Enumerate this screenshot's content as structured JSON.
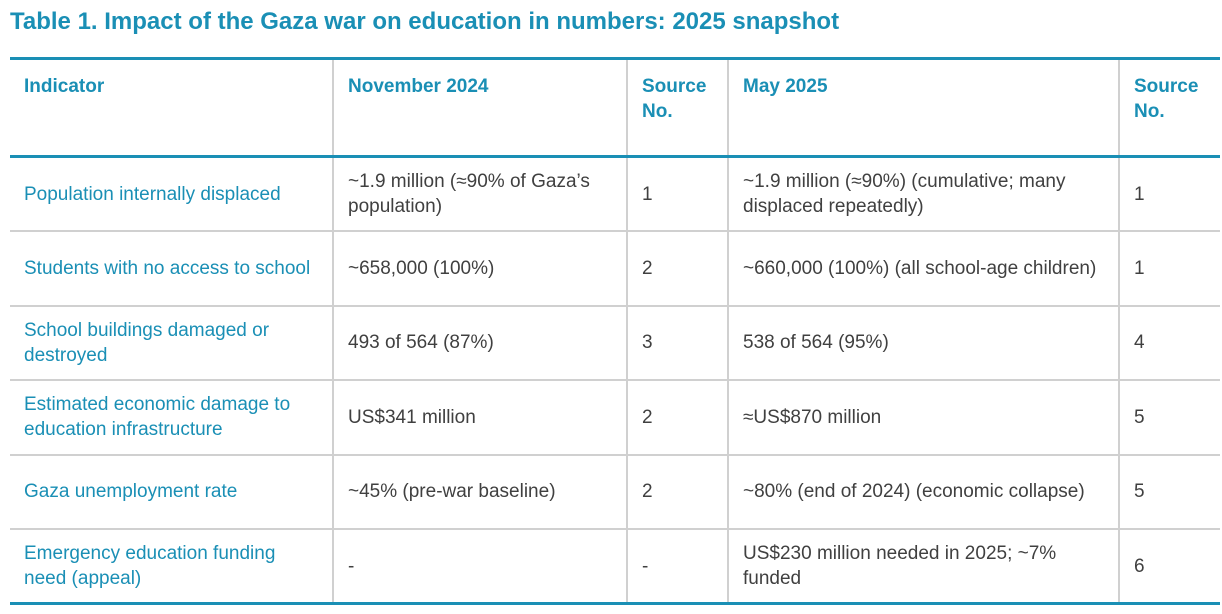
{
  "title": "Table 1. Impact of the Gaza war on education in numbers: 2025 snapshot",
  "headers": {
    "indicator": "Indicator",
    "nov2024": "November 2024",
    "source1": "Source No.",
    "may2025": "May 2025",
    "source2": "Source No."
  },
  "rows": [
    {
      "indicator": "Population internally displaced",
      "nov2024": "~1.9 million (≈90% of Gaza’s population)",
      "source1": "1",
      "may2025": "~1.9 million (≈90%) (cumulative; many displaced repeatedly)",
      "source2": "1"
    },
    {
      "indicator": "Students with no access to school",
      "nov2024": "~658,000 (100%)",
      "source1": "2",
      "may2025": "~660,000 (100%) (all school-age children)",
      "source2": "1"
    },
    {
      "indicator": "School buildings damaged or destroyed",
      "nov2024": "493 of 564 (87%)",
      "source1": "3",
      "may2025": "538 of 564 (95%)",
      "source2": "4"
    },
    {
      "indicator": "Estimated economic damage to education infrastructure",
      "nov2024": "US$341 million",
      "source1": "2",
      "may2025": "≈US$870 million",
      "source2": "5"
    },
    {
      "indicator": "Gaza unemployment rate",
      "nov2024": "~45% (pre-war baseline)",
      "source1": "2",
      "may2025": "~80% (end of 2024) (economic collapse)",
      "source2": "5"
    },
    {
      "indicator": "Emergency education funding need (appeal)",
      "nov2024": "-",
      "source1": "-",
      "may2025": "US$230 million needed in 2025; ~7% funded",
      "source2": "6"
    }
  ]
}
